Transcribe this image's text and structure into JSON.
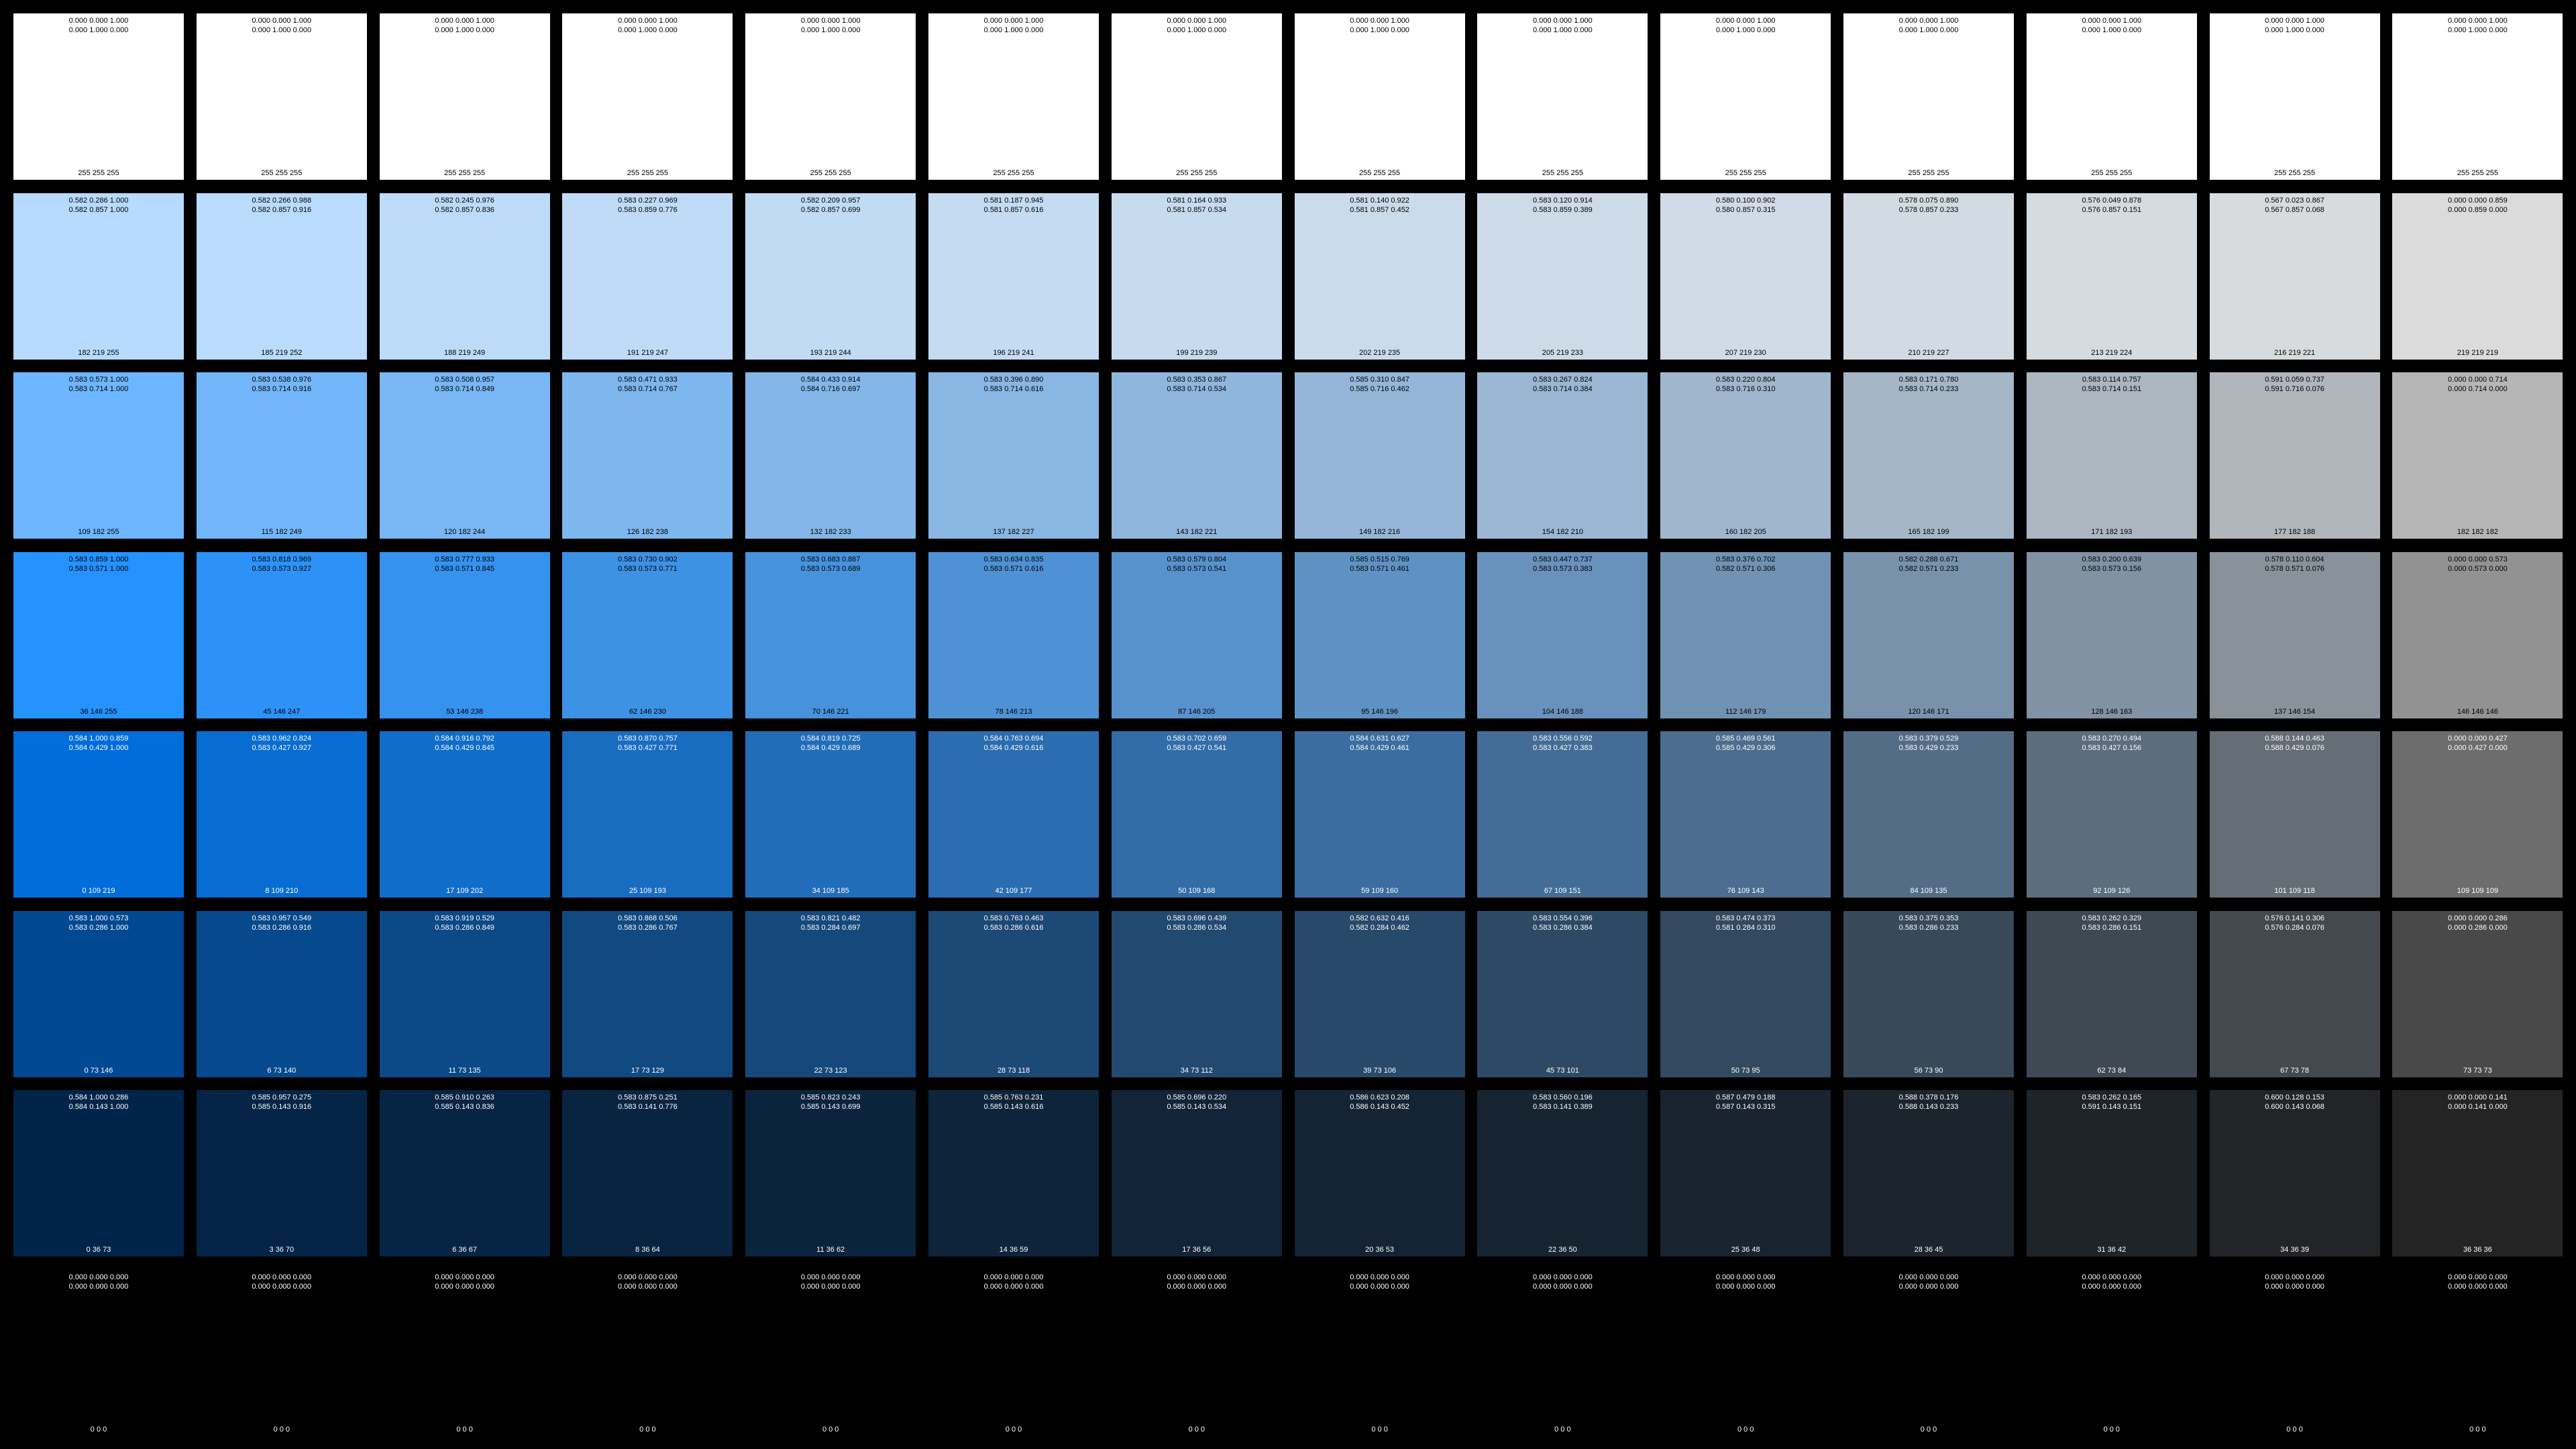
{
  "rows": [
    {
      "text_color": "#000000",
      "swatches": [
        {
          "l1": "0.000 0.000 1.000",
          "l2": "0.000 1.000 0.000",
          "rgb": "255 255 255",
          "color": "#ffffff"
        },
        {
          "l1": "0.000 0.000 1.000",
          "l2": "0.000 1.000 0.000",
          "rgb": "255 255 255",
          "color": "#ffffff"
        },
        {
          "l1": "0.000 0.000 1.000",
          "l2": "0.000 1.000 0.000",
          "rgb": "255 255 255",
          "color": "#ffffff"
        },
        {
          "l1": "0.000 0.000 1.000",
          "l2": "0.000 1.000 0.000",
          "rgb": "255 255 255",
          "color": "#ffffff"
        },
        {
          "l1": "0.000 0.000 1.000",
          "l2": "0.000 1.000 0.000",
          "rgb": "255 255 255",
          "color": "#ffffff"
        },
        {
          "l1": "0.000 0.000 1.000",
          "l2": "0.000 1.000 0.000",
          "rgb": "255 255 255",
          "color": "#ffffff"
        },
        {
          "l1": "0.000 0.000 1.000",
          "l2": "0.000 1.000 0.000",
          "rgb": "255 255 255",
          "color": "#ffffff"
        },
        {
          "l1": "0.000 0.000 1.000",
          "l2": "0.000 1.000 0.000",
          "rgb": "255 255 255",
          "color": "#ffffff"
        },
        {
          "l1": "0.000 0.000 1.000",
          "l2": "0.000 1.000 0.000",
          "rgb": "255 255 255",
          "color": "#ffffff"
        },
        {
          "l1": "0.000 0.000 1.000",
          "l2": "0.000 1.000 0.000",
          "rgb": "255 255 255",
          "color": "#ffffff"
        },
        {
          "l1": "0.000 0.000 1.000",
          "l2": "0.000 1.000 0.000",
          "rgb": "255 255 255",
          "color": "#ffffff"
        },
        {
          "l1": "0.000 0.000 1.000",
          "l2": "0.000 1.000 0.000",
          "rgb": "255 255 255",
          "color": "#ffffff"
        },
        {
          "l1": "0.000 0.000 1.000",
          "l2": "0.000 1.000 0.000",
          "rgb": "255 255 255",
          "color": "#ffffff"
        },
        {
          "l1": "0.000 0.000 1.000",
          "l2": "0.000 1.000 0.000",
          "rgb": "255 255 255",
          "color": "#ffffff"
        }
      ]
    },
    {
      "text_color": "#000000",
      "swatches": [
        {
          "l1": "0.582 0.286 1.000",
          "l2": "0.582 0.857 1.000",
          "rgb": "182 219 255",
          "color": "#b6dbff"
        },
        {
          "l1": "0.582 0.266 0.988",
          "l2": "0.582 0.857 0.916",
          "rgb": "185 219 252",
          "color": "#b9dbfc"
        },
        {
          "l1": "0.582 0.245 0.976",
          "l2": "0.582 0.857 0.836",
          "rgb": "188 219 249",
          "color": "#bcdbf9"
        },
        {
          "l1": "0.583 0.227 0.969",
          "l2": "0.583 0.859 0.776",
          "rgb": "191 219 247",
          "color": "#bfdbf7"
        },
        {
          "l1": "0.582 0.209 0.957",
          "l2": "0.582 0.857 0.699",
          "rgb": "193 219 244",
          "color": "#c1dbf4"
        },
        {
          "l1": "0.581 0.187 0.945",
          "l2": "0.581 0.857 0.616",
          "rgb": "196 219 241",
          "color": "#c4dbf1"
        },
        {
          "l1": "0.581 0.164 0.933",
          "l2": "0.581 0.857 0.534",
          "rgb": "199 219 239",
          "color": "#c7dbef"
        },
        {
          "l1": "0.581 0.140 0.922",
          "l2": "0.581 0.857 0.452",
          "rgb": "202 219 235",
          "color": "#cadbeb"
        },
        {
          "l1": "0.583 0.120 0.914",
          "l2": "0.583 0.859 0.389",
          "rgb": "205 219 233",
          "color": "#cddbe9"
        },
        {
          "l1": "0.580 0.100 0.902",
          "l2": "0.580 0.857 0.315",
          "rgb": "207 219 230",
          "color": "#cfdbe6"
        },
        {
          "l1": "0.578 0.075 0.890",
          "l2": "0.578 0.857 0.233",
          "rgb": "210 219 227",
          "color": "#d2dbe3"
        },
        {
          "l1": "0.576 0.049 0.878",
          "l2": "0.576 0.857 0.151",
          "rgb": "213 219 224",
          "color": "#d5dbe0"
        },
        {
          "l1": "0.567 0.023 0.867",
          "l2": "0.567 0.857 0.068",
          "rgb": "216 219 221",
          "color": "#d8dbdd"
        },
        {
          "l1": "0.000 0.000 0.859",
          "l2": "0.000 0.859 0.000",
          "rgb": "219 219 219",
          "color": "#dbdbdb"
        }
      ]
    },
    {
      "text_color": "#000000",
      "swatches": [
        {
          "l1": "0.583 0.573 1.000",
          "l2": "0.583 0.714 1.000",
          "rgb": "109 182 255",
          "color": "#6db6ff"
        },
        {
          "l1": "0.583 0.538 0.976",
          "l2": "0.583 0.714 0.916",
          "rgb": "115 182 249",
          "color": "#73b6f9"
        },
        {
          "l1": "0.583 0.508 0.957",
          "l2": "0.583 0.714 0.849",
          "rgb": "120 182 244",
          "color": "#78b6f4"
        },
        {
          "l1": "0.583 0.471 0.933",
          "l2": "0.583 0.714 0.767",
          "rgb": "126 182 238",
          "color": "#7eb6ee"
        },
        {
          "l1": "0.584 0.433 0.914",
          "l2": "0.584 0.716 0.697",
          "rgb": "132 182 233",
          "color": "#84b6e9"
        },
        {
          "l1": "0.583 0.396 0.890",
          "l2": "0.583 0.714 0.616",
          "rgb": "137 182 227",
          "color": "#89b6e3"
        },
        {
          "l1": "0.583 0.353 0.867",
          "l2": "0.583 0.714 0.534",
          "rgb": "143 182 221",
          "color": "#8fb6dd"
        },
        {
          "l1": "0.585 0.310 0.847",
          "l2": "0.585 0.716 0.462",
          "rgb": "149 182 216",
          "color": "#95b6d8"
        },
        {
          "l1": "0.583 0.267 0.824",
          "l2": "0.583 0.714 0.384",
          "rgb": "154 182 210",
          "color": "#9ab6d2"
        },
        {
          "l1": "0.583 0.220 0.804",
          "l2": "0.583 0.716 0.310",
          "rgb": "160 182 205",
          "color": "#a0b6cd"
        },
        {
          "l1": "0.583 0.171 0.780",
          "l2": "0.583 0.714 0.233",
          "rgb": "165 182 199",
          "color": "#a5b6c7"
        },
        {
          "l1": "0.583 0.114 0.757",
          "l2": "0.583 0.714 0.151",
          "rgb": "171 182 193",
          "color": "#abb6c1"
        },
        {
          "l1": "0.591 0.059 0.737",
          "l2": "0.591 0.716 0.076",
          "rgb": "177 182 188",
          "color": "#b1b6bc"
        },
        {
          "l1": "0.000 0.000 0.714",
          "l2": "0.000 0.714 0.000",
          "rgb": "182 182 182",
          "color": "#b6b6b6"
        }
      ]
    },
    {
      "text_color": "#000000",
      "swatches": [
        {
          "l1": "0.583 0.859 1.000",
          "l2": "0.583 0.571 1.000",
          "rgb": "36 146 255",
          "color": "#2492ff"
        },
        {
          "l1": "0.583 0.818 0.969",
          "l2": "0.583 0.573 0.927",
          "rgb": "45 146 247",
          "color": "#2d92f7"
        },
        {
          "l1": "0.583 0.777 0.933",
          "l2": "0.583 0.571 0.845",
          "rgb": "53 146 238",
          "color": "#3592ee"
        },
        {
          "l1": "0.583 0.730 0.902",
          "l2": "0.583 0.573 0.771",
          "rgb": "62 146 230",
          "color": "#3e92e6"
        },
        {
          "l1": "0.583 0.683 0.867",
          "l2": "0.583 0.573 0.689",
          "rgb": "70 146 221",
          "color": "#4692dd"
        },
        {
          "l1": "0.583 0.634 0.835",
          "l2": "0.583 0.571 0.616",
          "rgb": "78 146 213",
          "color": "#4e92d5"
        },
        {
          "l1": "0.583 0.579 0.804",
          "l2": "0.583 0.573 0.541",
          "rgb": "87 146 205",
          "color": "#5792cd"
        },
        {
          "l1": "0.585 0.515 0.769",
          "l2": "0.583 0.571 0.461",
          "rgb": "95 146 196",
          "color": "#5f92c4"
        },
        {
          "l1": "0.583 0.447 0.737",
          "l2": "0.583 0.573 0.383",
          "rgb": "104 146 188",
          "color": "#6892bc"
        },
        {
          "l1": "0.583 0.376 0.702",
          "l2": "0.582 0.571 0.306",
          "rgb": "112 146 179",
          "color": "#7092b3"
        },
        {
          "l1": "0.582 0.288 0.671",
          "l2": "0.582 0.571 0.233",
          "rgb": "120 146 171",
          "color": "#7892ab"
        },
        {
          "l1": "0.583 0.200 0.639",
          "l2": "0.583 0.573 0.156",
          "rgb": "128 146 163",
          "color": "#8092a3"
        },
        {
          "l1": "0.578 0.110 0.604",
          "l2": "0.578 0.571 0.076",
          "rgb": "137 146 154",
          "color": "#89929a"
        },
        {
          "l1": "0.000 0.000 0.573",
          "l2": "0.000 0.573 0.000",
          "rgb": "146 146 146",
          "color": "#929292"
        }
      ]
    },
    {
      "text_color": "#ffffff",
      "swatches": [
        {
          "l1": "0.584 1.000 0.859",
          "l2": "0.584 0.429 1.000",
          "rgb": "0 109 219",
          "color": "#006ddb"
        },
        {
          "l1": "0.583 0.962 0.824",
          "l2": "0.583 0.427 0.927",
          "rgb": "8 109 210",
          "color": "#086dd2"
        },
        {
          "l1": "0.584 0.916 0.792",
          "l2": "0.584 0.429 0.845",
          "rgb": "17 109 202",
          "color": "#116dca"
        },
        {
          "l1": "0.583 0.870 0.757",
          "l2": "0.583 0.427 0.771",
          "rgb": "25 109 193",
          "color": "#196dc1"
        },
        {
          "l1": "0.584 0.819 0.725",
          "l2": "0.584 0.429 0.689",
          "rgb": "34 109 185",
          "color": "#226db9"
        },
        {
          "l1": "0.584 0.763 0.694",
          "l2": "0.584 0.429 0.616",
          "rgb": "42 109 177",
          "color": "#2a6db1"
        },
        {
          "l1": "0.583 0.702 0.659",
          "l2": "0.583 0.427 0.541",
          "rgb": "50 109 168",
          "color": "#326da8"
        },
        {
          "l1": "0.584 0.631 0.627",
          "l2": "0.584 0.429 0.461",
          "rgb": "59 109 160",
          "color": "#3b6da0"
        },
        {
          "l1": "0.583 0.556 0.592",
          "l2": "0.583 0.427 0.383",
          "rgb": "67 109 151",
          "color": "#436d97"
        },
        {
          "l1": "0.585 0.469 0.561",
          "l2": "0.585 0.429 0.306",
          "rgb": "76 109 143",
          "color": "#4c6d8f"
        },
        {
          "l1": "0.583 0.379 0.529",
          "l2": "0.583 0.429 0.233",
          "rgb": "84 109 135",
          "color": "#546d87"
        },
        {
          "l1": "0.583 0.270 0.494",
          "l2": "0.583 0.427 0.156",
          "rgb": "92 109 126",
          "color": "#5c6d7e"
        },
        {
          "l1": "0.588 0.144 0.463",
          "l2": "0.588 0.429 0.076",
          "rgb": "101 109 118",
          "color": "#656d76"
        },
        {
          "l1": "0.000 0.000 0.427",
          "l2": "0.000 0.427 0.000",
          "rgb": "109 109 109",
          "color": "#6d6d6d"
        }
      ]
    },
    {
      "text_color": "#ffffff",
      "swatches": [
        {
          "l1": "0.583 1.000 0.573",
          "l2": "0.583 0.286 1.000",
          "rgb": "0 73 146",
          "color": "#004992"
        },
        {
          "l1": "0.583 0.957 0.549",
          "l2": "0.583 0.286 0.916",
          "rgb": "6 73 140",
          "color": "#06498c"
        },
        {
          "l1": "0.583 0.919 0.529",
          "l2": "0.583 0.286 0.849",
          "rgb": "11 73 135",
          "color": "#0b4987"
        },
        {
          "l1": "0.583 0.868 0.506",
          "l2": "0.583 0.286 0.767",
          "rgb": "17 73 129",
          "color": "#114981"
        },
        {
          "l1": "0.583 0.821 0.482",
          "l2": "0.583 0.284 0.697",
          "rgb": "22 73 123",
          "color": "#16497b"
        },
        {
          "l1": "0.583 0.763 0.463",
          "l2": "0.583 0.286 0.616",
          "rgb": "28 73 118",
          "color": "#1c4976"
        },
        {
          "l1": "0.583 0.696 0.439",
          "l2": "0.583 0.286 0.534",
          "rgb": "34 73 112",
          "color": "#224970"
        },
        {
          "l1": "0.582 0.632 0.416",
          "l2": "0.582 0.284 0.462",
          "rgb": "39 73 106",
          "color": "#27496a"
        },
        {
          "l1": "0.583 0.554 0.396",
          "l2": "0.583 0.286 0.384",
          "rgb": "45 73 101",
          "color": "#2d4965"
        },
        {
          "l1": "0.583 0.474 0.373",
          "l2": "0.581 0.284 0.310",
          "rgb": "50 73 95",
          "color": "#32495f"
        },
        {
          "l1": "0.583 0.375 0.353",
          "l2": "0.583 0.286 0.233",
          "rgb": "56 73 90",
          "color": "#38495a"
        },
        {
          "l1": "0.583 0.262 0.329",
          "l2": "0.583 0.286 0.151",
          "rgb": "62 73 84",
          "color": "#3e4954"
        },
        {
          "l1": "0.576 0.141 0.306",
          "l2": "0.576 0.284 0.076",
          "rgb": "67 73 78",
          "color": "#43494e"
        },
        {
          "l1": "0.000 0.000 0.286",
          "l2": "0.000 0.286 0.000",
          "rgb": "73 73 73",
          "color": "#494949"
        }
      ]
    },
    {
      "text_color": "#ffffff",
      "swatches": [
        {
          "l1": "0.584 1.000 0.286",
          "l2": "0.584 0.143 1.000",
          "rgb": "0 36 73",
          "color": "#002449"
        },
        {
          "l1": "0.585 0.957 0.275",
          "l2": "0.585 0.143 0.916",
          "rgb": "3 36 70",
          "color": "#032446"
        },
        {
          "l1": "0.585 0.910 0.263",
          "l2": "0.585 0.143 0.836",
          "rgb": "6 36 67",
          "color": "#062443"
        },
        {
          "l1": "0.583 0.875 0.251",
          "l2": "0.583 0.141 0.776",
          "rgb": "8 36 64",
          "color": "#082440"
        },
        {
          "l1": "0.585 0.823 0.243",
          "l2": "0.585 0.143 0.699",
          "rgb": "11 36 62",
          "color": "#0b243e"
        },
        {
          "l1": "0.585 0.763 0.231",
          "l2": "0.585 0.143 0.616",
          "rgb": "14 36 59",
          "color": "#0e243b"
        },
        {
          "l1": "0.585 0.696 0.220",
          "l2": "0.585 0.143 0.534",
          "rgb": "17 36 56",
          "color": "#112438"
        },
        {
          "l1": "0.586 0.623 0.208",
          "l2": "0.586 0.143 0.452",
          "rgb": "20 36 53",
          "color": "#142435"
        },
        {
          "l1": "0.583 0.560 0.196",
          "l2": "0.583 0.141 0.389",
          "rgb": "22 36 50",
          "color": "#162432"
        },
        {
          "l1": "0.587 0.479 0.188",
          "l2": "0.587 0.143 0.315",
          "rgb": "25 36 48",
          "color": "#192430"
        },
        {
          "l1": "0.588 0.378 0.176",
          "l2": "0.588 0.143 0.233",
          "rgb": "28 36 45",
          "color": "#1c242d"
        },
        {
          "l1": "0.583 0.262 0.165",
          "l2": "0.591 0.143 0.151",
          "rgb": "31 36 42",
          "color": "#1f242a"
        },
        {
          "l1": "0.600 0.128 0.153",
          "l2": "0.600 0.143 0.068",
          "rgb": "34 36 39",
          "color": "#222427"
        },
        {
          "l1": "0.000 0.000 0.141",
          "l2": "0.000 0.141 0.000",
          "rgb": "36 36 36",
          "color": "#242424"
        }
      ]
    },
    {
      "text_color": "#ffffff",
      "swatches": [
        {
          "l1": "0.000 0.000 0.000",
          "l2": "0.000 0.000 0.000",
          "rgb": "0 0 0",
          "color": "#000000"
        },
        {
          "l1": "0.000 0.000 0.000",
          "l2": "0.000 0.000 0.000",
          "rgb": "0 0 0",
          "color": "#000000"
        },
        {
          "l1": "0.000 0.000 0.000",
          "l2": "0.000 0.000 0.000",
          "rgb": "0 0 0",
          "color": "#000000"
        },
        {
          "l1": "0.000 0.000 0.000",
          "l2": "0.000 0.000 0.000",
          "rgb": "0 0 0",
          "color": "#000000"
        },
        {
          "l1": "0.000 0.000 0.000",
          "l2": "0.000 0.000 0.000",
          "rgb": "0 0 0",
          "color": "#000000"
        },
        {
          "l1": "0.000 0.000 0.000",
          "l2": "0.000 0.000 0.000",
          "rgb": "0 0 0",
          "color": "#000000"
        },
        {
          "l1": "0.000 0.000 0.000",
          "l2": "0.000 0.000 0.000",
          "rgb": "0 0 0",
          "color": "#000000"
        },
        {
          "l1": "0.000 0.000 0.000",
          "l2": "0.000 0.000 0.000",
          "rgb": "0 0 0",
          "color": "#000000"
        },
        {
          "l1": "0.000 0.000 0.000",
          "l2": "0.000 0.000 0.000",
          "rgb": "0 0 0",
          "color": "#000000"
        },
        {
          "l1": "0.000 0.000 0.000",
          "l2": "0.000 0.000 0.000",
          "rgb": "0 0 0",
          "color": "#000000"
        },
        {
          "l1": "0.000 0.000 0.000",
          "l2": "0.000 0.000 0.000",
          "rgb": "0 0 0",
          "color": "#000000"
        },
        {
          "l1": "0.000 0.000 0.000",
          "l2": "0.000 0.000 0.000",
          "rgb": "0 0 0",
          "color": "#000000"
        },
        {
          "l1": "0.000 0.000 0.000",
          "l2": "0.000 0.000 0.000",
          "rgb": "0 0 0",
          "color": "#000000"
        },
        {
          "l1": "0.000 0.000 0.000",
          "l2": "0.000 0.000 0.000",
          "rgb": "0 0 0",
          "color": "#000000"
        }
      ]
    }
  ]
}
